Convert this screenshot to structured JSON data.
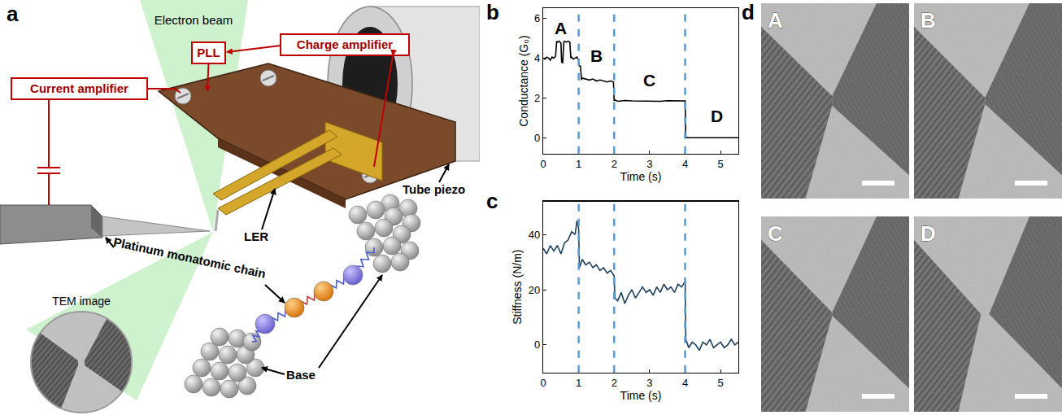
{
  "panel_labels": [
    "a",
    "b",
    "c",
    "d"
  ],
  "diagram": {
    "labels": {
      "electron_beam": "Electron beam",
      "pll": "PLL",
      "charge_amplifier": "Charge amplifier",
      "current_amplifier": "Current amplifier",
      "ler": "LER",
      "tube_piezo": "Tube piezo",
      "chain": "Platinum monatomic chain",
      "tem_image": "TEM image",
      "base": "Base"
    }
  },
  "chart_data": [
    {
      "type": "line",
      "x_label": "Time (s)",
      "y_label": "Conductance (G₀)",
      "color": "#000000",
      "grid": false,
      "x": [
        0,
        0.05,
        0.1,
        0.15,
        0.2,
        0.25,
        0.3,
        0.35,
        0.38,
        0.4,
        0.45,
        0.5,
        0.52,
        0.55,
        0.58,
        0.6,
        0.65,
        0.7,
        0.75,
        0.78,
        0.8,
        0.85,
        0.9,
        0.95,
        1.0,
        1.02,
        1.05,
        1.08,
        1.1,
        1.2,
        1.3,
        1.4,
        1.5,
        1.6,
        1.7,
        1.8,
        1.9,
        1.98,
        2.0,
        2.02,
        2.1,
        2.3,
        2.5,
        2.7,
        2.9,
        3.1,
        3.3,
        3.5,
        3.7,
        3.9,
        4.0,
        4.02,
        4.1,
        4.3,
        4.5,
        4.7,
        4.9,
        5.1,
        5.3,
        5.5
      ],
      "values": [
        4.0,
        3.95,
        4.05,
        4.0,
        3.9,
        4.05,
        4.0,
        4.1,
        4.85,
        4.8,
        4.85,
        4.75,
        3.8,
        3.75,
        4.8,
        4.85,
        4.8,
        4.85,
        4.8,
        4.0,
        4.05,
        3.95,
        4.0,
        4.05,
        3.9,
        3.6,
        3.6,
        2.9,
        3.0,
        2.95,
        2.9,
        2.95,
        2.85,
        2.9,
        2.85,
        2.8,
        2.85,
        2.8,
        1.85,
        1.9,
        1.83,
        1.87,
        1.85,
        1.84,
        1.86,
        1.85,
        1.83,
        1.86,
        1.85,
        1.87,
        1.85,
        0.02,
        0.0,
        0.0,
        0.0,
        0.0,
        0.0,
        0.0,
        0.0,
        0.0
      ],
      "xlim": [
        0,
        5.5
      ],
      "xticks": [
        0,
        1,
        2,
        3,
        4,
        5
      ],
      "ylim": [
        -0.8,
        6.5
      ],
      "yticks": [
        0,
        2,
        4,
        6
      ],
      "reference_lines": {
        "x": [
          1,
          2,
          4
        ],
        "color": "#5b9bd5",
        "line_style": "dash"
      },
      "annotations": [
        {
          "text": "A",
          "x": 0.5,
          "y": 5.5
        },
        {
          "text": "B",
          "x": 1.5,
          "y": 4.1
        },
        {
          "text": "C",
          "x": 3.0,
          "y": 2.9
        },
        {
          "text": "D",
          "x": 4.9,
          "y": 1.1
        }
      ]
    },
    {
      "type": "line",
      "x_label": "Time (s)",
      "y_label": "Stiffness (N/m)",
      "color": "#1b3f5e",
      "grid": false,
      "x": [
        0,
        0.1,
        0.2,
        0.3,
        0.4,
        0.5,
        0.6,
        0.7,
        0.8,
        0.9,
        0.95,
        1.0,
        1.02,
        1.1,
        1.2,
        1.3,
        1.4,
        1.5,
        1.6,
        1.7,
        1.8,
        1.9,
        2.0,
        2.02,
        2.1,
        2.2,
        2.3,
        2.4,
        2.5,
        2.6,
        2.7,
        2.8,
        2.9,
        3.0,
        3.1,
        3.2,
        3.3,
        3.4,
        3.5,
        3.6,
        3.7,
        3.8,
        3.9,
        4.0,
        4.02,
        4.1,
        4.2,
        4.3,
        4.4,
        4.5,
        4.6,
        4.7,
        4.8,
        4.9,
        5.0,
        5.1,
        5.2,
        5.3,
        5.4,
        5.5
      ],
      "values": [
        35,
        33,
        36,
        34,
        36,
        33,
        37,
        38,
        41,
        40,
        45,
        42,
        28,
        31,
        29,
        30,
        28,
        29,
        27,
        28,
        26,
        27,
        25,
        17,
        16,
        19,
        15,
        18,
        20,
        17,
        19,
        21,
        19,
        20,
        18,
        21,
        19,
        22,
        20,
        21,
        19,
        22,
        21,
        23,
        2,
        -1,
        1,
        0,
        -2,
        1,
        0,
        2,
        -1,
        0,
        1,
        -1,
        0,
        2,
        0,
        1
      ],
      "xlim": [
        0,
        5.5
      ],
      "xticks": [
        0,
        1,
        2,
        3,
        4,
        5
      ],
      "ylim": [
        -10,
        52
      ],
      "yticks": [
        0,
        20,
        40
      ],
      "reference_lines": {
        "x": [
          1,
          2,
          4
        ],
        "color": "#5b9bd5",
        "line_style": "dash"
      }
    }
  ],
  "micrographs": {
    "labels": [
      "A",
      "B",
      "C",
      "D"
    ]
  }
}
